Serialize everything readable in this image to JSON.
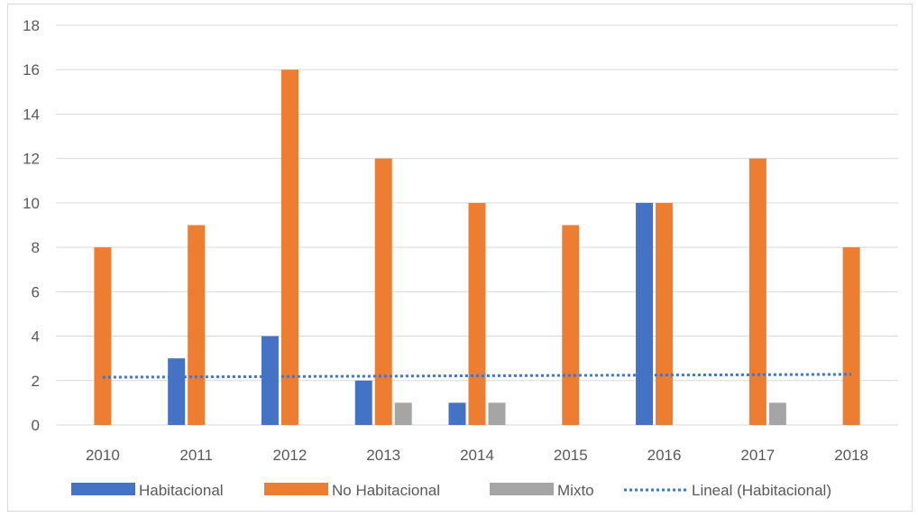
{
  "chart_data": {
    "type": "bar",
    "title": "",
    "xlabel": "",
    "ylabel": "",
    "categories": [
      "2010",
      "2011",
      "2012",
      "2013",
      "2014",
      "2015",
      "2016",
      "2017",
      "2018"
    ],
    "series": [
      {
        "name": "Habitacional",
        "values": [
          0,
          3,
          4,
          2,
          1,
          0,
          10,
          0,
          0
        ],
        "color": "#4472C4"
      },
      {
        "name": "No Habitacional",
        "values": [
          8,
          9,
          16,
          12,
          10,
          9,
          10,
          12,
          8
        ],
        "color": "#ED7D31"
      },
      {
        "name": "Mixto",
        "values": [
          0,
          0,
          0,
          1,
          1,
          0,
          0,
          1,
          0
        ],
        "color": "#A5A5A5"
      }
    ],
    "trendline": {
      "name": "Lineal (Habitacional)",
      "type": "linear",
      "series": "Habitacional",
      "start_value": 2.15,
      "end_value": 2.28,
      "color": "#4472C4",
      "style": "dotted"
    },
    "ylim": [
      0,
      18
    ],
    "yticks": [
      "0",
      "2",
      "4",
      "6",
      "8",
      "10",
      "12",
      "14",
      "16",
      "18"
    ],
    "grid": true,
    "legend_position": "bottom"
  }
}
